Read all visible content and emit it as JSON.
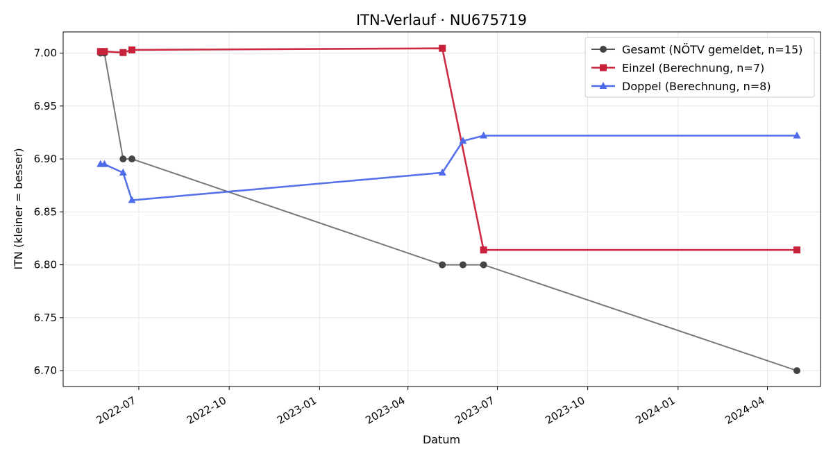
{
  "chart_data": {
    "type": "line",
    "title": "ITN-Verlauf · NU675719",
    "xlabel": "Datum",
    "ylabel": "ITN  (kleiner = besser)",
    "x_type": "date",
    "xlim": [
      "2022-04-15",
      "2024-05-25"
    ],
    "ylim": [
      6.685,
      7.02
    ],
    "x_ticks": [
      "2022-07-01",
      "2022-10-01",
      "2023-01-01",
      "2023-04-01",
      "2023-07-01",
      "2023-10-01",
      "2024-01-01",
      "2024-04-01"
    ],
    "x_tick_labels": [
      "2022-07",
      "2022-10",
      "2023-01",
      "2023-04",
      "2023-07",
      "2023-10",
      "2024-01",
      "2024-04"
    ],
    "y_ticks": [
      6.7,
      6.75,
      6.8,
      6.85,
      6.9,
      6.95,
      7.0
    ],
    "y_tick_labels": [
      "6.70",
      "6.75",
      "6.80",
      "6.85",
      "6.90",
      "6.95",
      "7.00"
    ],
    "grid": true,
    "legend_position": "top-right",
    "series": [
      {
        "name": "Gesamt (NÖTV gemeldet, n=15)",
        "color": "#555555",
        "marker": "circle",
        "points": [
          {
            "x": "2022-05-23",
            "y": 7.0
          },
          {
            "x": "2022-05-27",
            "y": 7.0
          },
          {
            "x": "2022-06-15",
            "y": 6.9
          },
          {
            "x": "2022-06-24",
            "y": 6.9
          },
          {
            "x": "2023-05-06",
            "y": 6.8
          },
          {
            "x": "2023-05-27",
            "y": 6.8
          },
          {
            "x": "2023-06-17",
            "y": 6.8
          },
          {
            "x": "2024-05-01",
            "y": 6.7
          }
        ]
      },
      {
        "name": "Einzel (Berechnung, n=7)",
        "color": "#c8213a",
        "marker": "square",
        "points": [
          {
            "x": "2022-05-23",
            "y": 7.0015
          },
          {
            "x": "2022-05-27",
            "y": 7.0015
          },
          {
            "x": "2022-06-15",
            "y": 7.0005
          },
          {
            "x": "2022-06-24",
            "y": 7.003
          },
          {
            "x": "2023-05-06",
            "y": 7.0045
          },
          {
            "x": "2023-06-17",
            "y": 6.814
          },
          {
            "x": "2024-05-01",
            "y": 6.814
          }
        ]
      },
      {
        "name": "Doppel (Berechnung, n=8)",
        "color": "#4d6ae8",
        "marker": "triangle",
        "points": [
          {
            "x": "2022-05-23",
            "y": 6.895
          },
          {
            "x": "2022-05-27",
            "y": 6.895
          },
          {
            "x": "2022-06-15",
            "y": 6.887
          },
          {
            "x": "2022-06-24",
            "y": 6.861
          },
          {
            "x": "2023-05-06",
            "y": 6.887
          },
          {
            "x": "2023-05-27",
            "y": 6.917
          },
          {
            "x": "2023-06-17",
            "y": 6.922
          },
          {
            "x": "2024-05-01",
            "y": 6.922
          }
        ]
      }
    ]
  }
}
